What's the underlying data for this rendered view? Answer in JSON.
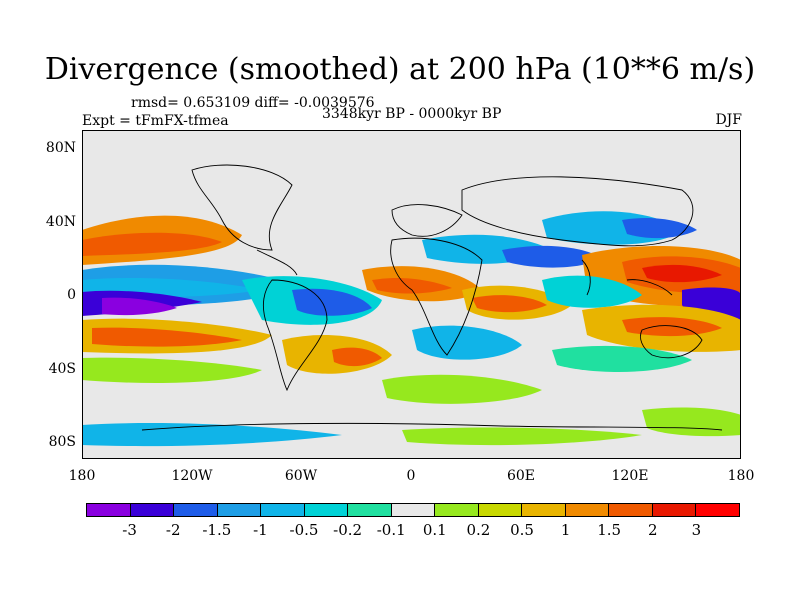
{
  "title": "Divergence (smoothed) at 200 hPa (10**6 m/s)",
  "stats": "rmsd= 0.653109 diff= -0.0039576",
  "period": "3348kyr BP - 0000kyr BP",
  "experiment": "Expt = tFmFX-tfmea",
  "season": "DJF",
  "axes": {
    "y_ticks": [
      "80N",
      "40N",
      "0",
      "40S",
      "80S"
    ],
    "x_ticks": [
      "180",
      "120W",
      "60W",
      "0",
      "60E",
      "120E",
      "180"
    ]
  },
  "colorbar": {
    "labels": [
      "-3",
      "-2",
      "-1.5",
      "-1",
      "-0.5",
      "-0.2",
      "-0.1",
      "0.1",
      "0.2",
      "0.5",
      "1",
      "1.5",
      "2",
      "3"
    ],
    "colors": [
      "#8a00e0",
      "#3a00d8",
      "#1e5ce8",
      "#1e9ee6",
      "#10b4e8",
      "#00d2d6",
      "#20e0a0",
      "#e8e8e8",
      "#96e81e",
      "#c8d800",
      "#e8b400",
      "#f08a00",
      "#f05a00",
      "#e81800",
      "#ff0000"
    ]
  }
}
